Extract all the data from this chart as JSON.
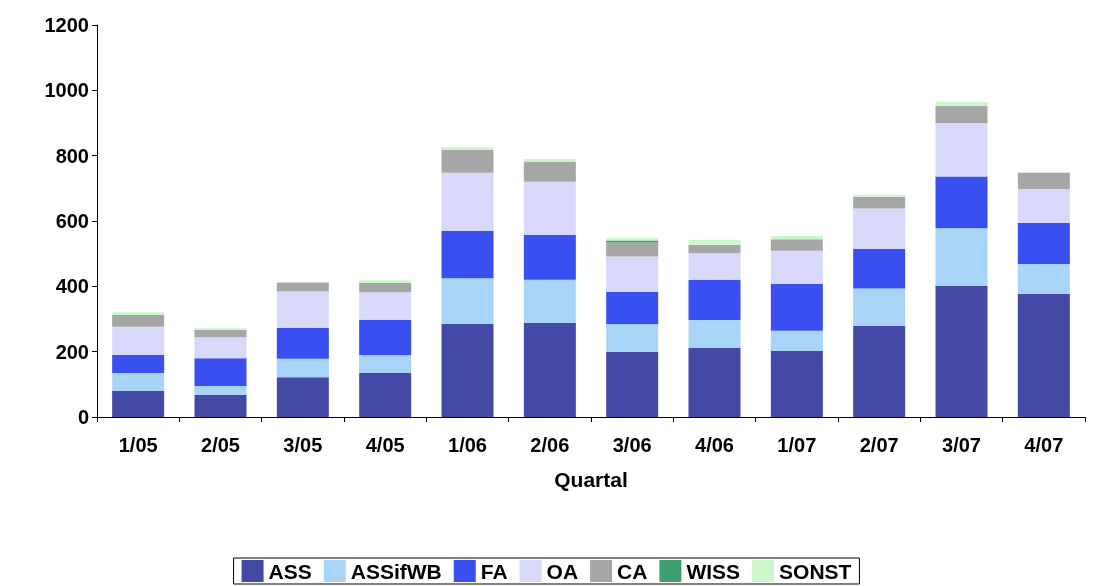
{
  "chart_data": {
    "type": "bar",
    "stacked": true,
    "xlabel": "Quartal",
    "categories": [
      "1/05",
      "2/05",
      "3/05",
      "4/05",
      "1/06",
      "2/06",
      "3/06",
      "4/06",
      "1/07",
      "2/07",
      "3/07",
      "4/07"
    ],
    "series": [
      {
        "name": "ASS",
        "color": "#4449a6",
        "values": [
          80,
          67,
          122,
          135,
          285,
          288,
          199,
          211,
          203,
          279,
          402,
          377
        ]
      },
      {
        "name": "ASSifWB",
        "color": "#a8d4f8",
        "values": [
          55,
          28,
          56,
          54,
          140,
          132,
          85,
          86,
          61,
          114,
          176,
          91
        ]
      },
      {
        "name": "FA",
        "color": "#3a4ff0",
        "values": [
          55,
          85,
          95,
          108,
          145,
          137,
          99,
          123,
          143,
          122,
          158,
          127
        ]
      },
      {
        "name": "OA",
        "color": "#d8d8fa",
        "values": [
          86,
          64,
          111,
          85,
          178,
          163,
          108,
          81,
          102,
          123,
          164,
          103
        ]
      },
      {
        "name": "CA",
        "color": "#a6a6a6",
        "values": [
          36,
          22,
          28,
          28,
          69,
          62,
          43,
          26,
          35,
          36,
          52,
          50
        ]
      },
      {
        "name": "WISS",
        "color": "#3d9e6f",
        "values": [
          0,
          0,
          0,
          0,
          0,
          0,
          6,
          0,
          0,
          0,
          0,
          0
        ]
      },
      {
        "name": "SONST",
        "color": "#ccf7cc",
        "values": [
          9,
          6,
          0,
          9,
          9,
          8,
          8,
          15,
          10,
          6,
          12,
          0
        ]
      }
    ],
    "ylim": [
      0,
      1200
    ],
    "yticks": [
      0,
      200,
      400,
      600,
      800,
      1000,
      1200
    ],
    "grid": false,
    "legend": "bottom"
  }
}
